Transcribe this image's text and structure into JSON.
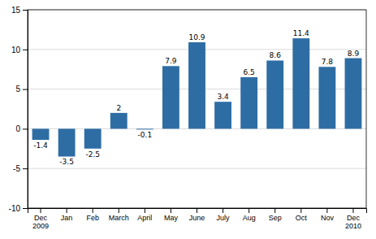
{
  "chart_data": {
    "type": "bar",
    "categories": [
      "Dec\n2009",
      "Jan",
      "Feb",
      "March",
      "April",
      "May",
      "June",
      "July",
      "Aug",
      "Sep",
      "Oct",
      "Nov",
      "Dec\n2010"
    ],
    "values": [
      -1.4,
      -3.5,
      -2.5,
      2.0,
      -0.1,
      7.9,
      10.9,
      3.4,
      6.5,
      8.6,
      11.4,
      7.8,
      8.9
    ],
    "color": "#2E6DA4",
    "ylim": [
      -10,
      15
    ],
    "yticks": [
      -10,
      -5,
      0,
      5,
      10,
      15
    ],
    "grid": true,
    "data_labels": true
  }
}
